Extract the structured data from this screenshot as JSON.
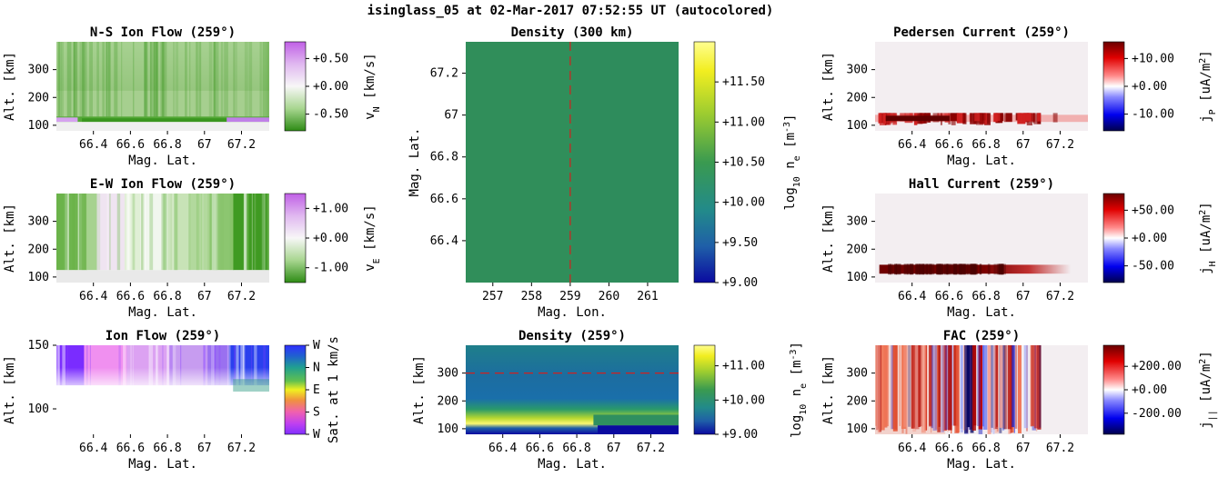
{
  "suptitle": "isinglass_05 at 02-Mar-2017 07:52:55 UT (autocolored)",
  "colors": {
    "green": "#3a961f",
    "purple": "#c080e8",
    "pale": "#f3eef1",
    "red": "#990000",
    "blue": "#143d99"
  },
  "chart_data": [
    {
      "id": "ns",
      "type": "heatmap",
      "title": "N-S Ion Flow (259°)",
      "xlabel": "Mag. Lat.",
      "ylabel": "Alt. [km]",
      "xlim": [
        66.2,
        67.35
      ],
      "ylim": [
        80,
        400
      ],
      "xticks": [
        {
          "v": 66.4,
          "t": "66.4"
        },
        {
          "v": 66.6,
          "t": "66.6"
        },
        {
          "v": 66.8,
          "t": "66.8"
        },
        {
          "v": 67.0,
          "t": "67"
        },
        {
          "v": 67.2,
          "t": "67.2"
        }
      ],
      "yticks": [
        {
          "v": 100,
          "t": "100"
        },
        {
          "v": 200,
          "t": "200"
        },
        {
          "v": 300,
          "t": "300"
        }
      ],
      "fill": "ns",
      "colorbar": {
        "scale": "purple-green",
        "range": [
          -0.8,
          0.8
        ],
        "ticks": [
          {
            "v": 0.5,
            "t": "+0.50"
          },
          {
            "v": 0,
            "t": "+0.00"
          },
          {
            "v": -0.5,
            "t": "-0.50"
          }
        ],
        "label": "v",
        "sub": "N",
        "unit": " [km/s]"
      }
    },
    {
      "id": "ew",
      "type": "heatmap",
      "title": "E-W Ion Flow (259°)",
      "xlabel": "Mag. Lat.",
      "ylabel": "Alt. [km]",
      "xlim": [
        66.2,
        67.35
      ],
      "ylim": [
        80,
        400
      ],
      "xticks": [
        {
          "v": 66.4,
          "t": "66.4"
        },
        {
          "v": 66.6,
          "t": "66.6"
        },
        {
          "v": 66.8,
          "t": "66.8"
        },
        {
          "v": 67.0,
          "t": "67"
        },
        {
          "v": 67.2,
          "t": "67.2"
        }
      ],
      "yticks": [
        {
          "v": 100,
          "t": "100"
        },
        {
          "v": 200,
          "t": "200"
        },
        {
          "v": 300,
          "t": "300"
        }
      ],
      "fill": "ew",
      "colorbar": {
        "scale": "purple-green",
        "range": [
          -1.5,
          1.5
        ],
        "ticks": [
          {
            "v": 1,
            "t": "+1.00"
          },
          {
            "v": 0,
            "t": "+0.00"
          },
          {
            "v": -1,
            "t": "-1.00"
          }
        ],
        "label": "v",
        "sub": "E",
        "unit": " [km/s]"
      }
    },
    {
      "id": "ionflow",
      "type": "heatmap",
      "title": "Ion Flow (259°)",
      "xlabel": "Mag. Lat.",
      "ylabel": "Alt. [km]",
      "xlim": [
        66.2,
        67.35
      ],
      "ylim": [
        80,
        150
      ],
      "xticks": [
        {
          "v": 66.4,
          "t": "66.4"
        },
        {
          "v": 66.6,
          "t": "66.6"
        },
        {
          "v": 66.8,
          "t": "66.8"
        },
        {
          "v": 67.0,
          "t": "67"
        },
        {
          "v": 67.2,
          "t": "67.2"
        }
      ],
      "yticks": [
        {
          "v": 100,
          "t": "100"
        },
        {
          "v": 150,
          "t": "150"
        }
      ],
      "fill": "ionflow",
      "colorbar": {
        "scale": "hue",
        "range": [
          0,
          4
        ],
        "ticks": [
          {
            "v": 4,
            "t": "W"
          },
          {
            "v": 3,
            "t": "N"
          },
          {
            "v": 2,
            "t": "E"
          },
          {
            "v": 1,
            "t": "S"
          },
          {
            "v": 0,
            "t": "W"
          }
        ],
        "label": "Sat. at 1 km/s",
        "sub": "",
        "unit": ""
      }
    },
    {
      "id": "dens300",
      "type": "heatmap",
      "title": "Density (300 km)",
      "xlabel": "Mag. Lon.",
      "ylabel": "Mag. Lat.",
      "xlim": [
        256.3,
        261.8
      ],
      "ylim": [
        66.2,
        67.35
      ],
      "xticks": [
        {
          "v": 257,
          "t": "257"
        },
        {
          "v": 258,
          "t": "258"
        },
        {
          "v": 259,
          "t": "259"
        },
        {
          "v": 260,
          "t": "260"
        },
        {
          "v": 261,
          "t": "261"
        }
      ],
      "yticks": [
        {
          "v": 66.4,
          "t": "66.4"
        },
        {
          "v": 66.6,
          "t": "66.6"
        },
        {
          "v": 66.8,
          "t": "66.8"
        },
        {
          "v": 67.0,
          "t": "67"
        },
        {
          "v": 67.2,
          "t": "67.2"
        }
      ],
      "fill": "dens300",
      "vline": 259,
      "colorbar": {
        "scale": "viridis",
        "range": [
          9,
          12
        ],
        "ticks": [
          {
            "v": 11.5,
            "t": "+11.50"
          },
          {
            "v": 11,
            "t": "+11.00"
          },
          {
            "v": 10.5,
            "t": "+10.50"
          },
          {
            "v": 10,
            "t": "+10.00"
          },
          {
            "v": 9.5,
            "t": "+9.50"
          },
          {
            "v": 9,
            "t": "+9.00"
          }
        ],
        "label": "log",
        "sub": "10",
        "unit": " n",
        "unitsub": "e",
        "unit2": " [m",
        "sup": "-3",
        "unit3": "]"
      }
    },
    {
      "id": "dens259",
      "type": "heatmap",
      "title": "Density (259°)",
      "xlabel": "Mag. Lat.",
      "ylabel": "Alt. [km]",
      "xlim": [
        66.2,
        67.35
      ],
      "ylim": [
        80,
        400
      ],
      "xticks": [
        {
          "v": 66.4,
          "t": "66.4"
        },
        {
          "v": 66.6,
          "t": "66.6"
        },
        {
          "v": 66.8,
          "t": "66.8"
        },
        {
          "v": 67.0,
          "t": "67"
        },
        {
          "v": 67.2,
          "t": "67.2"
        }
      ],
      "yticks": [
        {
          "v": 100,
          "t": "100"
        },
        {
          "v": 200,
          "t": "200"
        },
        {
          "v": 300,
          "t": "300"
        }
      ],
      "fill": "dens259",
      "hline": 300,
      "colorbar": {
        "scale": "viridis",
        "range": [
          9,
          11.6
        ],
        "ticks": [
          {
            "v": 11,
            "t": "+11.00"
          },
          {
            "v": 10,
            "t": "+10.00"
          },
          {
            "v": 9,
            "t": "+9.00"
          }
        ],
        "label": "log",
        "sub": "10",
        "unit": " n",
        "unitsub": "e",
        "unit2": " [m",
        "sup": "-3",
        "unit3": "]"
      }
    },
    {
      "id": "ped",
      "type": "heatmap",
      "title": "Pedersen Current (259°)",
      "xlabel": "Mag. Lat.",
      "ylabel": "Alt. [km]",
      "xlim": [
        66.2,
        67.35
      ],
      "ylim": [
        80,
        400
      ],
      "xticks": [
        {
          "v": 66.4,
          "t": "66.4"
        },
        {
          "v": 66.6,
          "t": "66.6"
        },
        {
          "v": 66.8,
          "t": "66.8"
        },
        {
          "v": 67.0,
          "t": "67"
        },
        {
          "v": 67.2,
          "t": "67.2"
        }
      ],
      "yticks": [
        {
          "v": 100,
          "t": "100"
        },
        {
          "v": 200,
          "t": "200"
        },
        {
          "v": 300,
          "t": "300"
        }
      ],
      "fill": "ped",
      "colorbar": {
        "scale": "seismic",
        "range": [
          -16,
          16
        ],
        "ticks": [
          {
            "v": 10,
            "t": "+10.00"
          },
          {
            "v": 0,
            "t": "+0.00"
          },
          {
            "v": -10,
            "t": "-10.00"
          }
        ],
        "label": "j",
        "sub": "P",
        "unit": " [uA/m",
        "sup": "2",
        "unit3": "]"
      }
    },
    {
      "id": "hall",
      "type": "heatmap",
      "title": "Hall Current (259°)",
      "xlabel": "Mag. Lat.",
      "ylabel": "Alt. [km]",
      "xlim": [
        66.2,
        67.35
      ],
      "ylim": [
        80,
        400
      ],
      "xticks": [
        {
          "v": 66.4,
          "t": "66.4"
        },
        {
          "v": 66.6,
          "t": "66.6"
        },
        {
          "v": 66.8,
          "t": "66.8"
        },
        {
          "v": 67.0,
          "t": "67"
        },
        {
          "v": 67.2,
          "t": "67.2"
        }
      ],
      "yticks": [
        {
          "v": 100,
          "t": "100"
        },
        {
          "v": 200,
          "t": "200"
        },
        {
          "v": 300,
          "t": "300"
        }
      ],
      "fill": "hall",
      "colorbar": {
        "scale": "seismic",
        "range": [
          -80,
          80
        ],
        "ticks": [
          {
            "v": 50,
            "t": "+50.00"
          },
          {
            "v": 0,
            "t": "+0.00"
          },
          {
            "v": -50,
            "t": "-50.00"
          }
        ],
        "label": "j",
        "sub": "H",
        "unit": " [uA/m",
        "sup": "2",
        "unit3": "]"
      }
    },
    {
      "id": "fac",
      "type": "heatmap",
      "title": "FAC (259°)",
      "xlabel": "Mag. Lat.",
      "ylabel": "Alt. [km]",
      "xlim": [
        66.2,
        67.35
      ],
      "ylim": [
        80,
        400
      ],
      "xticks": [
        {
          "v": 66.4,
          "t": "66.4"
        },
        {
          "v": 66.6,
          "t": "66.6"
        },
        {
          "v": 66.8,
          "t": "66.8"
        },
        {
          "v": 67.0,
          "t": "67"
        },
        {
          "v": 67.2,
          "t": "67.2"
        }
      ],
      "yticks": [
        {
          "v": 100,
          "t": "100"
        },
        {
          "v": 200,
          "t": "200"
        },
        {
          "v": 300,
          "t": "300"
        }
      ],
      "fill": "fac",
      "colorbar": {
        "scale": "seismic",
        "range": [
          -380,
          380
        ],
        "ticks": [
          {
            "v": 200,
            "t": "+200.00"
          },
          {
            "v": 0,
            "t": "+0.00"
          },
          {
            "v": -200,
            "t": "-200.00"
          }
        ],
        "label": "j",
        "sub": "||",
        "unit": " [uA/m",
        "sup": "2",
        "unit3": "]"
      }
    }
  ]
}
